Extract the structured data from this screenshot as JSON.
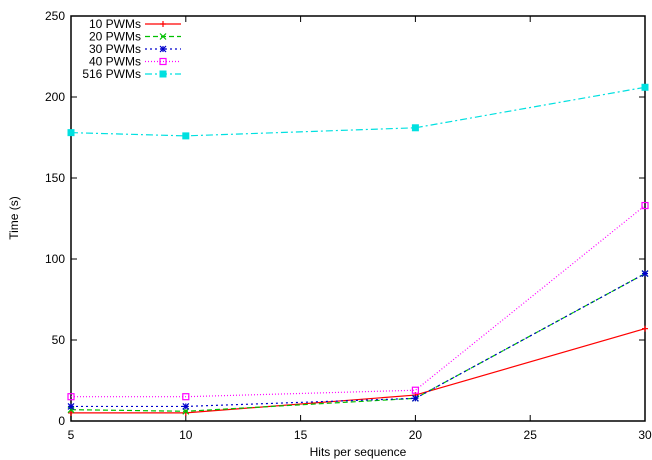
{
  "chart_data": {
    "type": "line",
    "title": "",
    "xlabel": "Hits per sequence",
    "ylabel": "Time (s)",
    "xlim": [
      5,
      30
    ],
    "ylim": [
      0,
      250
    ],
    "x_ticks": [
      5,
      10,
      15,
      20,
      25,
      30
    ],
    "y_ticks": [
      0,
      50,
      100,
      150,
      200,
      250
    ],
    "grid": false,
    "legend_position": "top-left",
    "x": [
      5,
      10,
      20,
      30
    ],
    "series": [
      {
        "name": "10 PWMs",
        "color": "#ff0000",
        "dash": "solid",
        "marker": "plus",
        "values": [
          5,
          5,
          16,
          57
        ]
      },
      {
        "name": "20 PWMs",
        "color": "#00c000",
        "dash": "dashed",
        "marker": "cross",
        "values": [
          7,
          6,
          14,
          91
        ]
      },
      {
        "name": "30 PWMs",
        "color": "#0000cc",
        "dash": "dotted",
        "marker": "star",
        "values": [
          9,
          9,
          14,
          91
        ]
      },
      {
        "name": "40 PWMs",
        "color": "#ff00ff",
        "dash": "fine-dotted",
        "marker": "open-square",
        "values": [
          15,
          15,
          19,
          133
        ]
      },
      {
        "name": "516 PWMs",
        "color": "#00e0e0",
        "dash": "dash-dot",
        "marker": "filled-square",
        "values": [
          178,
          176,
          181,
          206
        ]
      }
    ]
  }
}
